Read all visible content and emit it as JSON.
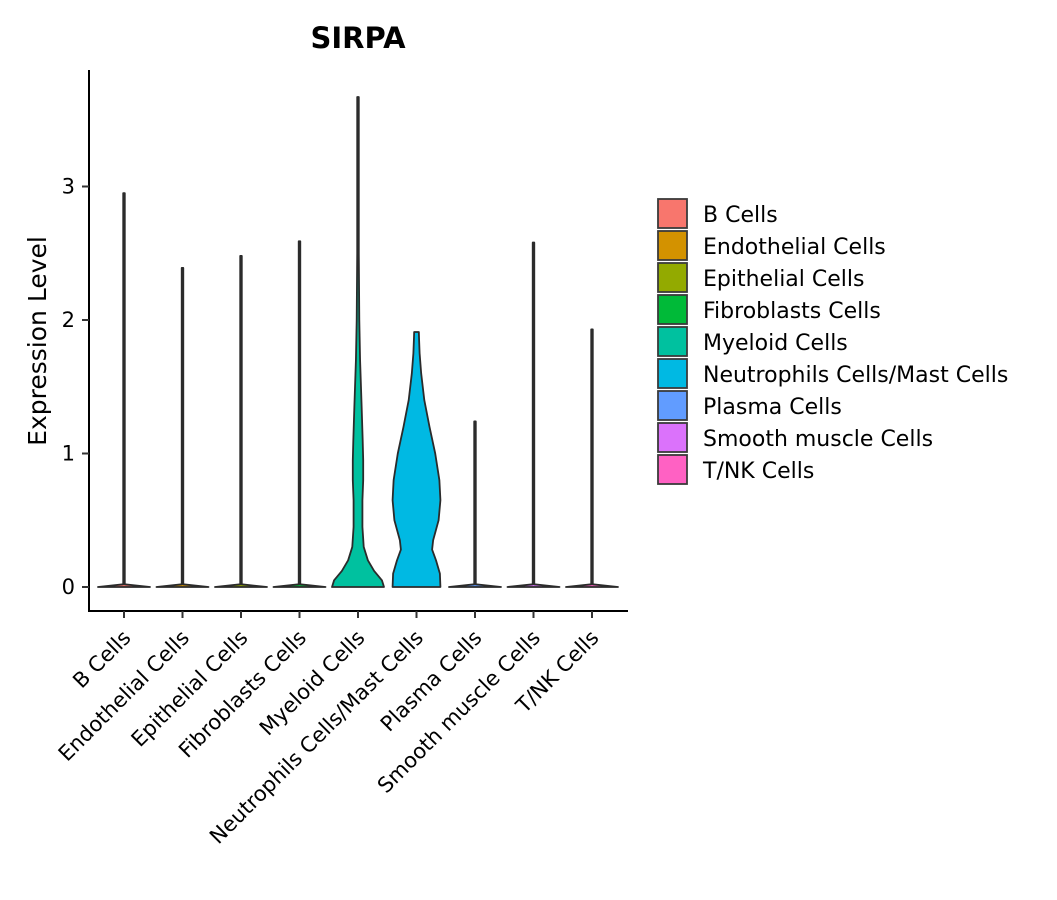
{
  "chart_data": {
    "type": "violin",
    "title": "SIRPA",
    "xlabel": "",
    "ylabel": "Expression Level",
    "ylim": [
      -0.18,
      3.85
    ],
    "yticks": [
      0,
      1,
      2,
      3
    ],
    "ytick_labels": [
      "0",
      "1",
      "2",
      "3"
    ],
    "grid": false,
    "legend_position": "right",
    "categories": [
      "B Cells",
      "Endothelial Cells",
      "Epithelial Cells",
      "Fibroblasts Cells",
      "Myeloid Cells",
      "Neutrophils Cells/Mast Cells",
      "Plasma Cells",
      "Smooth muscle Cells",
      "T/NK Cells"
    ],
    "legend": [
      {
        "label": "B Cells",
        "color": "#F8766D"
      },
      {
        "label": "Endothelial Cells",
        "color": "#D39200"
      },
      {
        "label": "Epithelial Cells",
        "color": "#93AA00"
      },
      {
        "label": "Fibroblasts Cells",
        "color": "#00BA38"
      },
      {
        "label": "Myeloid Cells",
        "color": "#00C19F"
      },
      {
        "label": "Neutrophils Cells/Mast Cells",
        "color": "#00B9E3"
      },
      {
        "label": "Plasma Cells",
        "color": "#619CFF"
      },
      {
        "label": "Smooth muscle Cells",
        "color": "#DB72FB"
      },
      {
        "label": "T/NK Cells",
        "color": "#FF61C3"
      }
    ],
    "series": [
      {
        "name": "B Cells",
        "min": 0,
        "max": 2.95,
        "density": [
          [
            0,
            1.0
          ],
          [
            0.02,
            0.03
          ],
          [
            2.95,
            0.03
          ]
        ]
      },
      {
        "name": "Endothelial Cells",
        "min": 0,
        "max": 2.39,
        "density": [
          [
            0,
            1.0
          ],
          [
            0.02,
            0.03
          ],
          [
            2.39,
            0.03
          ]
        ]
      },
      {
        "name": "Epithelial Cells",
        "min": 0,
        "max": 2.48,
        "density": [
          [
            0,
            1.0
          ],
          [
            0.02,
            0.03
          ],
          [
            2.48,
            0.03
          ]
        ]
      },
      {
        "name": "Fibroblasts Cells",
        "min": 0,
        "max": 2.59,
        "density": [
          [
            0,
            1.0
          ],
          [
            0.02,
            0.03
          ],
          [
            2.59,
            0.03
          ]
        ]
      },
      {
        "name": "Myeloid Cells",
        "min": 0,
        "max": 3.67,
        "density": [
          [
            0,
            1.0
          ],
          [
            0.05,
            0.92
          ],
          [
            0.12,
            0.62
          ],
          [
            0.2,
            0.38
          ],
          [
            0.3,
            0.22
          ],
          [
            0.45,
            0.17
          ],
          [
            0.65,
            0.17
          ],
          [
            0.8,
            0.2
          ],
          [
            0.95,
            0.2
          ],
          [
            1.1,
            0.18
          ],
          [
            1.35,
            0.14
          ],
          [
            1.7,
            0.08
          ],
          [
            2.0,
            0.05
          ],
          [
            2.5,
            0.03
          ],
          [
            3.0,
            0.03
          ],
          [
            3.67,
            0.03
          ]
        ]
      },
      {
        "name": "Neutrophils Cells/Mast Cells",
        "min": 0,
        "max": 1.91,
        "density": [
          [
            0,
            0.92
          ],
          [
            0.1,
            0.9
          ],
          [
            0.2,
            0.75
          ],
          [
            0.28,
            0.6
          ],
          [
            0.35,
            0.64
          ],
          [
            0.5,
            0.85
          ],
          [
            0.65,
            0.92
          ],
          [
            0.8,
            0.88
          ],
          [
            1.0,
            0.72
          ],
          [
            1.2,
            0.5
          ],
          [
            1.4,
            0.3
          ],
          [
            1.6,
            0.18
          ],
          [
            1.75,
            0.12
          ],
          [
            1.85,
            0.1
          ],
          [
            1.91,
            0.09
          ]
        ]
      },
      {
        "name": "Plasma Cells",
        "min": 0,
        "max": 1.24,
        "density": [
          [
            0,
            1.0
          ],
          [
            0.02,
            0.03
          ],
          [
            1.24,
            0.03
          ]
        ]
      },
      {
        "name": "Smooth muscle Cells",
        "min": 0,
        "max": 2.58,
        "density": [
          [
            0,
            1.0
          ],
          [
            0.02,
            0.03
          ],
          [
            2.58,
            0.03
          ]
        ]
      },
      {
        "name": "T/NK Cells",
        "min": 0,
        "max": 1.93,
        "density": [
          [
            0,
            1.0
          ],
          [
            0.02,
            0.03
          ],
          [
            1.93,
            0.03
          ]
        ]
      }
    ]
  }
}
